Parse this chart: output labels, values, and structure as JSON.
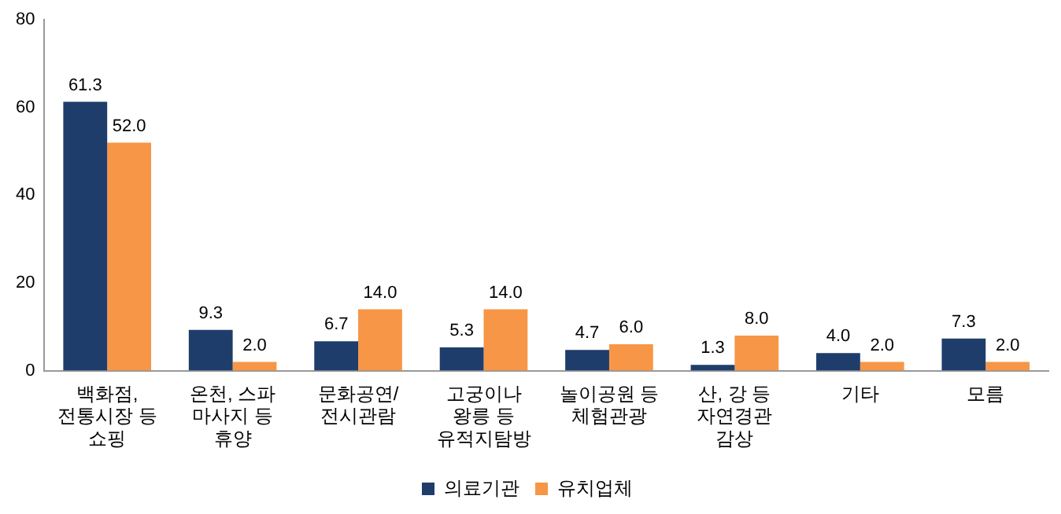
{
  "chart_data": {
    "type": "bar",
    "categories": [
      "백화점,\n전통시장 등\n쇼핑",
      "온천, 스파\n마사지 등\n휴양",
      "문화공연/\n전시관람",
      "고궁이나\n왕릉 등\n유적지탐방",
      "놀이공원 등\n체험관광",
      "산, 강 등\n자연경관\n감상",
      "기타",
      "모름"
    ],
    "series": [
      {
        "name": "의료기관",
        "color": "#1f3d6b",
        "values": [
          61.3,
          9.3,
          6.7,
          5.3,
          4.7,
          1.3,
          4.0,
          7.3
        ],
        "value_labels": [
          "61.3",
          "9.3",
          "6.7",
          "5.3",
          "4.7",
          "1.3",
          "4.0",
          "7.3"
        ]
      },
      {
        "name": "유치업체",
        "color": "#f79646",
        "values": [
          52.0,
          2.0,
          14.0,
          14.0,
          6.0,
          8.0,
          2.0,
          2.0
        ],
        "value_labels": [
          "52.0",
          "2.0",
          "14.0",
          "14.0",
          "6.0",
          "8.0",
          "2.0",
          "2.0"
        ]
      }
    ],
    "ylim": [
      0,
      80
    ],
    "yticks": [
      0,
      20,
      40,
      60,
      80
    ],
    "grid": false,
    "legend": "bottom"
  }
}
